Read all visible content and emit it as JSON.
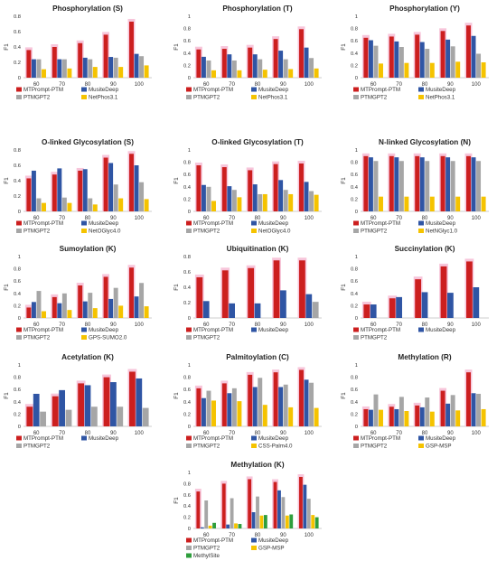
{
  "figure": {
    "colors": {
      "MTPrompt-PTM": "#cc1f1f",
      "MusiteDeep": "#2f55a4",
      "PTMGPT2": "#a6a6a6",
      "NetPhos3.1": "#f5c300",
      "NetOGlyc4.0": "#f5c300",
      "NetNGlyc1.0": "#f5c300",
      "GPS-SUMO2.0": "#f5c300",
      "CSS-Palm4.0": "#f5c300",
      "GSP-MSP": "#f5c300",
      "MethylSite": "#2e9e3c",
      "highlight": "#f7c5da"
    }
  },
  "chart_data": [
    {
      "type": "bar",
      "title": "Phosphorylation (S)",
      "ylabel": "F1",
      "ylim": [
        0,
        0.8
      ],
      "yticks": [
        "0",
        "0.2",
        "0.4",
        "0.6",
        "0.8"
      ],
      "categories": [
        "60",
        "70",
        "80",
        "90",
        "100"
      ],
      "series": [
        {
          "name": "MTPrompt-PTM",
          "values": [
            0.36,
            0.4,
            0.45,
            0.56,
            0.73
          ]
        },
        {
          "name": "MusiteDeep",
          "values": [
            0.24,
            0.24,
            0.26,
            0.27,
            0.31
          ]
        },
        {
          "name": "PTMGPT2",
          "values": [
            0.24,
            0.24,
            0.24,
            0.26,
            0.28
          ]
        },
        {
          "name": "NetPhos3.1",
          "values": [
            0.11,
            0.12,
            0.14,
            0.14,
            0.16
          ]
        }
      ]
    },
    {
      "type": "bar",
      "title": "Phosphorylation (T)",
      "ylabel": "F1",
      "ylim": [
        0,
        1
      ],
      "yticks": [
        "0",
        "0.2",
        "0.4",
        "0.6",
        "0.8",
        "1"
      ],
      "categories": [
        "60",
        "70",
        "80",
        "90",
        "100"
      ],
      "series": [
        {
          "name": "MTPrompt-PTM",
          "values": [
            0.46,
            0.47,
            0.49,
            0.63,
            0.79
          ]
        },
        {
          "name": "MusiteDeep",
          "values": [
            0.34,
            0.38,
            0.38,
            0.44,
            0.49
          ]
        },
        {
          "name": "PTMGPT2",
          "values": [
            0.28,
            0.28,
            0.3,
            0.3,
            0.32
          ]
        },
        {
          "name": "NetPhos3.1",
          "values": [
            0.12,
            0.12,
            0.13,
            0.14,
            0.15
          ]
        }
      ]
    },
    {
      "type": "bar",
      "title": "Phosphorylation (Y)",
      "ylabel": "F1",
      "ylim": [
        0,
        1
      ],
      "yticks": [
        "0",
        "0.2",
        "0.4",
        "0.6",
        "0.8",
        "1"
      ],
      "categories": [
        "60",
        "70",
        "80",
        "90",
        "100"
      ],
      "series": [
        {
          "name": "MTPrompt-PTM",
          "values": [
            0.65,
            0.67,
            0.7,
            0.76,
            0.85
          ]
        },
        {
          "name": "MusiteDeep",
          "values": [
            0.61,
            0.59,
            0.58,
            0.62,
            0.68
          ]
        },
        {
          "name": "PTMGPT2",
          "values": [
            0.52,
            0.5,
            0.47,
            0.51,
            0.39
          ]
        },
        {
          "name": "NetPhos3.1",
          "values": [
            0.23,
            0.24,
            0.24,
            0.26,
            0.25
          ]
        }
      ]
    },
    {
      "type": "bar",
      "title": "O-linked Glycosylation (S)",
      "ylabel": "F1",
      "ylim": [
        0,
        0.8
      ],
      "yticks": [
        "0",
        "0.2",
        "0.4",
        "0.6",
        "0.8"
      ],
      "categories": [
        "60",
        "70",
        "80",
        "90",
        "100"
      ],
      "series": [
        {
          "name": "MTPrompt-PTM",
          "values": [
            0.43,
            0.48,
            0.53,
            0.7,
            0.75
          ]
        },
        {
          "name": "MusiteDeep",
          "values": [
            0.53,
            0.56,
            0.55,
            0.63,
            0.6
          ]
        },
        {
          "name": "PTMGPT2",
          "values": [
            0.17,
            0.18,
            0.17,
            0.35,
            0.38
          ]
        },
        {
          "name": "NetOGlyc4.0",
          "values": [
            0.11,
            0.11,
            0.09,
            0.17,
            0.16
          ]
        }
      ]
    },
    {
      "type": "bar",
      "title": "O-linked Glycosylation (T)",
      "ylabel": "F1",
      "ylim": [
        0,
        1
      ],
      "yticks": [
        "0",
        "0.2",
        "0.4",
        "0.6",
        "0.8",
        "1"
      ],
      "categories": [
        "60",
        "70",
        "80",
        "90",
        "100"
      ],
      "series": [
        {
          "name": "MTPrompt-PTM",
          "values": [
            0.75,
            0.72,
            0.67,
            0.77,
            0.78
          ]
        },
        {
          "name": "MusiteDeep",
          "values": [
            0.43,
            0.41,
            0.44,
            0.51,
            0.48
          ]
        },
        {
          "name": "PTMGPT2",
          "values": [
            0.4,
            0.35,
            0.28,
            0.35,
            0.33
          ]
        },
        {
          "name": "NetOGlyc4.0",
          "values": [
            0.17,
            0.23,
            0.28,
            0.28,
            0.27
          ]
        }
      ]
    },
    {
      "type": "bar",
      "title": "N-linked Glycosylation (N)",
      "ylabel": "F1",
      "ylim": [
        0,
        1
      ],
      "yticks": [
        "0",
        "0.2",
        "0.4",
        "0.6",
        "0.8",
        "1"
      ],
      "categories": [
        "60",
        "70",
        "80",
        "90",
        "100"
      ],
      "series": [
        {
          "name": "MTPrompt-PTM",
          "values": [
            0.9,
            0.9,
            0.9,
            0.9,
            0.9
          ]
        },
        {
          "name": "MusiteDeep",
          "values": [
            0.88,
            0.88,
            0.88,
            0.88,
            0.88
          ]
        },
        {
          "name": "PTMGPT2",
          "values": [
            0.82,
            0.82,
            0.82,
            0.82,
            0.82
          ]
        },
        {
          "name": "NetNGlyc1.0",
          "values": [
            0.24,
            0.24,
            0.24,
            0.24,
            0.24
          ]
        }
      ]
    },
    {
      "type": "bar",
      "title": "Sumoylation (K)",
      "ylabel": "F1",
      "ylim": [
        0,
        1
      ],
      "yticks": [
        "0",
        "0.2",
        "0.4",
        "0.6",
        "0.8",
        "1"
      ],
      "categories": [
        "60",
        "70",
        "80",
        "90",
        "100"
      ],
      "series": [
        {
          "name": "MTPrompt-PTM",
          "values": [
            0.17,
            0.34,
            0.53,
            0.67,
            0.82
          ]
        },
        {
          "name": "MusiteDeep",
          "values": [
            0.26,
            0.24,
            0.27,
            0.31,
            0.35
          ]
        },
        {
          "name": "PTMGPT2",
          "values": [
            0.44,
            0.4,
            0.41,
            0.49,
            0.57
          ]
        },
        {
          "name": "GPS-SUMO2.0",
          "values": [
            0.11,
            0.13,
            0.16,
            0.2,
            0.19
          ]
        }
      ]
    },
    {
      "type": "bar",
      "title": "Ubiquitination (K)",
      "ylabel": "F1",
      "ylim": [
        0,
        0.8
      ],
      "yticks": [
        "0",
        "0.2",
        "0.4",
        "0.6",
        "0.8"
      ],
      "categories": [
        "60",
        "70",
        "80",
        "90",
        "100"
      ],
      "series": [
        {
          "name": "MTPrompt-PTM",
          "values": [
            0.53,
            0.62,
            0.65,
            0.75,
            0.75
          ]
        },
        {
          "name": "MusiteDeep",
          "values": [
            0.22,
            0.19,
            0.19,
            0.36,
            0.31
          ]
        },
        {
          "name": "PTMGPT2",
          "values": [
            0.0,
            0.0,
            0.0,
            0.0,
            0.21
          ]
        }
      ]
    },
    {
      "type": "bar",
      "title": "Succinylation (K)",
      "ylabel": "F1",
      "ylim": [
        0,
        1
      ],
      "yticks": [
        "0",
        "0.2",
        "0.4",
        "0.6",
        "0.8",
        "1"
      ],
      "categories": [
        "60",
        "70",
        "80",
        "90",
        "100"
      ],
      "series": [
        {
          "name": "MTPrompt-PTM",
          "values": [
            0.22,
            0.32,
            0.63,
            0.84,
            0.92
          ]
        },
        {
          "name": "MusiteDeep",
          "values": [
            0.22,
            0.34,
            0.42,
            0.41,
            0.5
          ]
        },
        {
          "name": "PTMGPT2",
          "values": [
            0.0,
            0.0,
            0.0,
            0.0,
            0.0
          ]
        }
      ]
    },
    {
      "type": "bar",
      "title": "Acetylation (K)",
      "ylabel": "F1",
      "ylim": [
        0,
        1
      ],
      "yticks": [
        "0",
        "0.2",
        "0.4",
        "0.6",
        "0.8",
        "1"
      ],
      "categories": [
        "60",
        "70",
        "80",
        "90",
        "100"
      ],
      "series": [
        {
          "name": "MTPrompt-PTM",
          "values": [
            0.32,
            0.49,
            0.7,
            0.8,
            0.89
          ]
        },
        {
          "name": "MusiteDeep",
          "values": [
            0.53,
            0.59,
            0.67,
            0.72,
            0.78
          ]
        },
        {
          "name": "PTMGPT2",
          "values": [
            0.24,
            0.27,
            0.32,
            0.32,
            0.3
          ]
        }
      ]
    },
    {
      "type": "bar",
      "title": "Palmitoylation (C)",
      "ylabel": "F1",
      "ylim": [
        0,
        1
      ],
      "yticks": [
        "0",
        "0.2",
        "0.4",
        "0.6",
        "0.8",
        "1"
      ],
      "categories": [
        "60",
        "70",
        "80",
        "90",
        "100"
      ],
      "series": [
        {
          "name": "MTPrompt-PTM",
          "values": [
            0.62,
            0.7,
            0.84,
            0.88,
            0.92
          ]
        },
        {
          "name": "MusiteDeep",
          "values": [
            0.46,
            0.54,
            0.64,
            0.64,
            0.76
          ]
        },
        {
          "name": "PTMGPT2",
          "values": [
            0.58,
            0.62,
            0.79,
            0.68,
            0.71
          ]
        },
        {
          "name": "CSS-Palm4.0",
          "values": [
            0.42,
            0.41,
            0.35,
            0.31,
            0.3
          ]
        }
      ]
    },
    {
      "type": "bar",
      "title": "Methylation (R)",
      "ylabel": "F1",
      "ylim": [
        0,
        1
      ],
      "yticks": [
        "0",
        "0.2",
        "0.4",
        "0.6",
        "0.8",
        "1"
      ],
      "categories": [
        "60",
        "70",
        "80",
        "90",
        "100"
      ],
      "series": [
        {
          "name": "MTPrompt-PTM",
          "values": [
            0.28,
            0.32,
            0.34,
            0.58,
            0.88
          ]
        },
        {
          "name": "MusiteDeep",
          "values": [
            0.27,
            0.28,
            0.31,
            0.37,
            0.54
          ]
        },
        {
          "name": "PTMGPT2",
          "values": [
            0.52,
            0.48,
            0.47,
            0.51,
            0.53
          ]
        },
        {
          "name": "GSP-MSP",
          "values": [
            0.27,
            0.25,
            0.24,
            0.26,
            0.28
          ]
        }
      ]
    },
    {
      "type": "bar",
      "title": "Methylation (K)",
      "ylabel": "F1",
      "ylim": [
        0,
        1
      ],
      "yticks": [
        "0",
        "0.2",
        "0.4",
        "0.6",
        "0.8",
        "1"
      ],
      "categories": [
        "60",
        "70",
        "80",
        "90",
        "100"
      ],
      "series": [
        {
          "name": "MTPrompt-PTM",
          "values": [
            0.66,
            0.8,
            0.88,
            0.83,
            0.92
          ]
        },
        {
          "name": "MusiteDeep",
          "values": [
            0.02,
            0.07,
            0.29,
            0.68,
            0.78
          ]
        },
        {
          "name": "PTMGPT2",
          "values": [
            0.5,
            0.54,
            0.57,
            0.56,
            0.53
          ]
        },
        {
          "name": "GSP-MSP",
          "values": [
            0.05,
            0.09,
            0.23,
            0.23,
            0.24
          ]
        },
        {
          "name": "MethylSite",
          "values": [
            0.1,
            0.08,
            0.24,
            0.25,
            0.2
          ]
        }
      ]
    }
  ]
}
